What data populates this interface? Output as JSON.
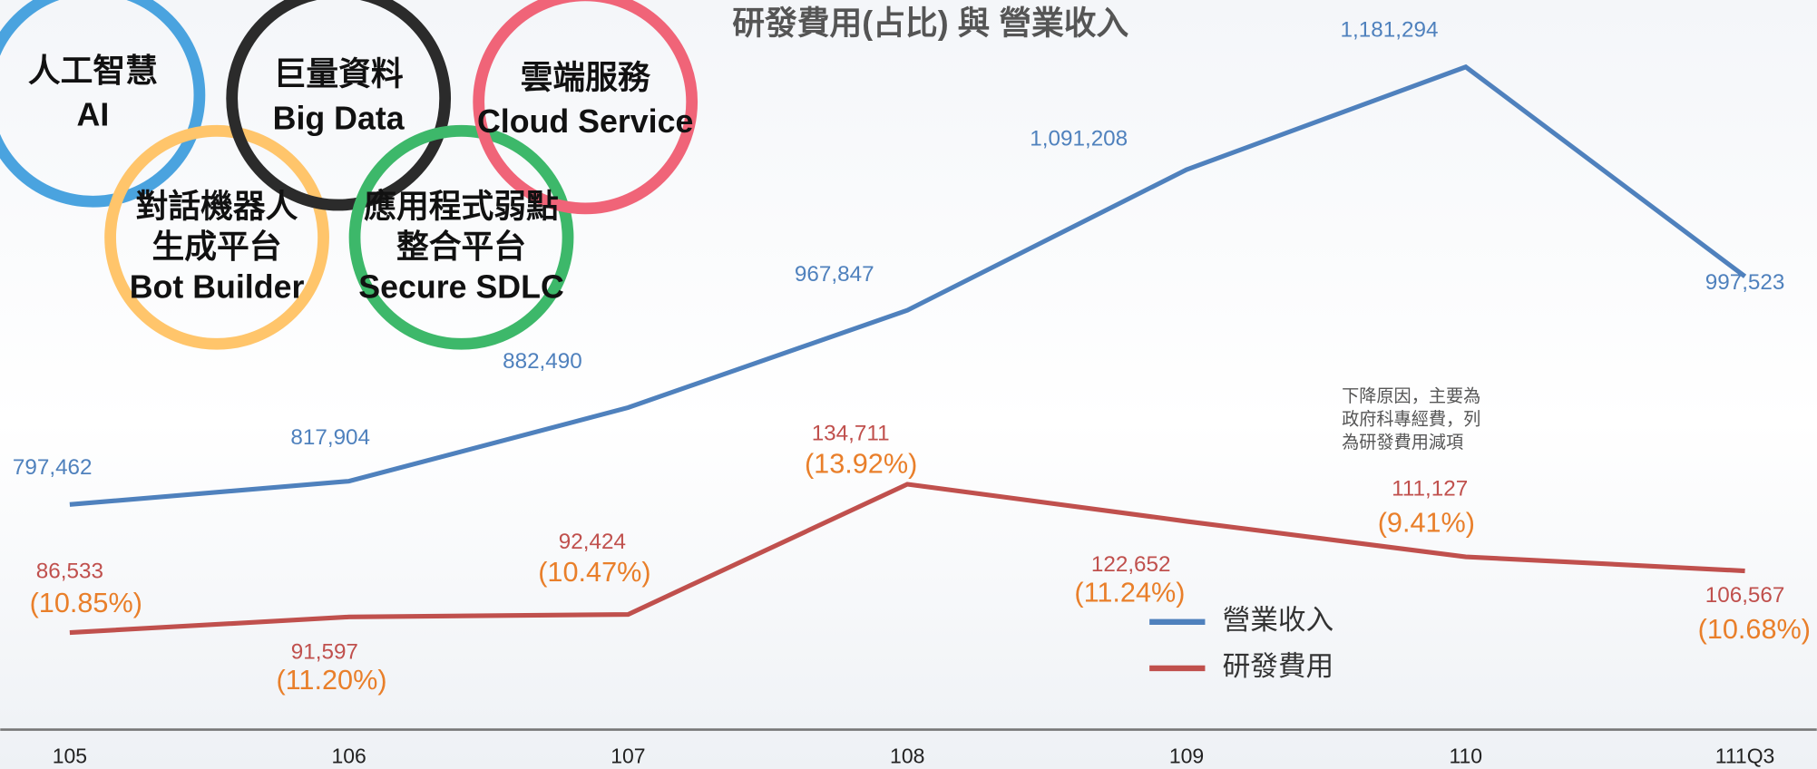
{
  "chart_data": {
    "type": "line",
    "title": "研發費用(占比) 與 營業收入",
    "categories": [
      "105",
      "106",
      "107",
      "108",
      "109",
      "110",
      "111Q3"
    ],
    "series": [
      {
        "name": "營業收入",
        "color": "#4f81bd",
        "values": [
          797462,
          817904,
          882490,
          967847,
          1091208,
          1181294,
          997523
        ],
        "value_labels": [
          "797,462",
          "817,904",
          "882,490",
          "967,847",
          "1,091,208",
          "1,181,294",
          "997,523"
        ]
      },
      {
        "name": "研發費用",
        "color": "#c0504d",
        "axis": "y2",
        "values": [
          86533,
          91597,
          92424,
          134711,
          122652,
          111127,
          106567
        ],
        "value_labels": [
          "86,533",
          "91,597",
          "92,424",
          "134,711",
          "122,652",
          "111,127",
          "106,567"
        ],
        "ratio_values": [
          10.85,
          11.2,
          10.47,
          13.92,
          11.24,
          9.41,
          10.68
        ],
        "ratio_labels": [
          "(10.85%)",
          "(11.20%)",
          "(10.47%)",
          "(13.92%)",
          "(11.24%)",
          "(9.41%)",
          "(10.68%)"
        ],
        "ratio_color": "#e97f2a"
      }
    ],
    "ylim": [
      600000,
      1240000
    ],
    "y2lim": [
      55000,
      292000
    ],
    "annotation": [
      "下降原因，主要為",
      "政府科專經費，列",
      "為研發費用減項"
    ],
    "rings": [
      {
        "lines": [
          "人工智慧",
          "AI"
        ]
      },
      {
        "lines": [
          "對話機器人",
          "生成平台",
          "Bot Builder"
        ]
      },
      {
        "lines": [
          "巨量資料",
          "Big Data"
        ]
      },
      {
        "lines": [
          "應用程式弱點",
          "整合平台",
          "Secure SDLC"
        ]
      },
      {
        "lines": [
          "雲端服務",
          "Cloud Service"
        ]
      }
    ]
  }
}
